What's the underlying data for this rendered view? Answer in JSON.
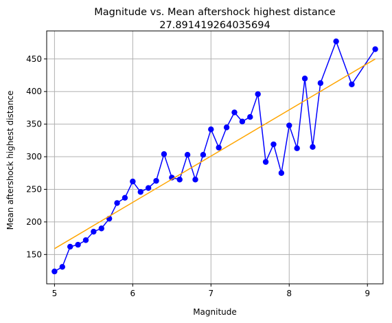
{
  "chart_data": {
    "type": "line",
    "title": "Magnitude vs. Mean aftershock highest distance",
    "subtitle": "27.891419264035694",
    "xlabel": "Magnitude",
    "ylabel": "Mean aftershock highest distance",
    "xlim": [
      4.9,
      9.2
    ],
    "ylim": [
      105,
      493
    ],
    "xticks": [
      5,
      6,
      7,
      8,
      9
    ],
    "yticks": [
      150,
      200,
      250,
      300,
      350,
      400,
      450
    ],
    "grid": true,
    "series": [
      {
        "type": "line-marker",
        "color": "#0000ff",
        "x": [
          5.0,
          5.1,
          5.2,
          5.3,
          5.4,
          5.5,
          5.6,
          5.7,
          5.8,
          5.9,
          6.0,
          6.1,
          6.2,
          6.3,
          6.4,
          6.5,
          6.6,
          6.7,
          6.8,
          6.9,
          7.0,
          7.1,
          7.2,
          7.3,
          7.4,
          7.5,
          7.6,
          7.7,
          7.8,
          7.9,
          8.0,
          8.1,
          8.2,
          8.3,
          8.4,
          8.6,
          8.8,
          9.1
        ],
        "y": [
          124,
          131,
          162,
          165,
          172,
          185,
          190,
          205,
          229,
          237,
          262,
          246,
          252,
          263,
          304,
          268,
          265,
          303,
          265,
          303,
          342,
          314,
          345,
          368,
          354,
          361,
          396,
          292,
          319,
          275,
          348,
          313,
          420,
          315,
          413,
          477,
          411,
          465
        ]
      },
      {
        "type": "line",
        "color": "#ffa500",
        "x": [
          5.0,
          9.1
        ],
        "y": [
          159,
          450
        ]
      }
    ]
  }
}
